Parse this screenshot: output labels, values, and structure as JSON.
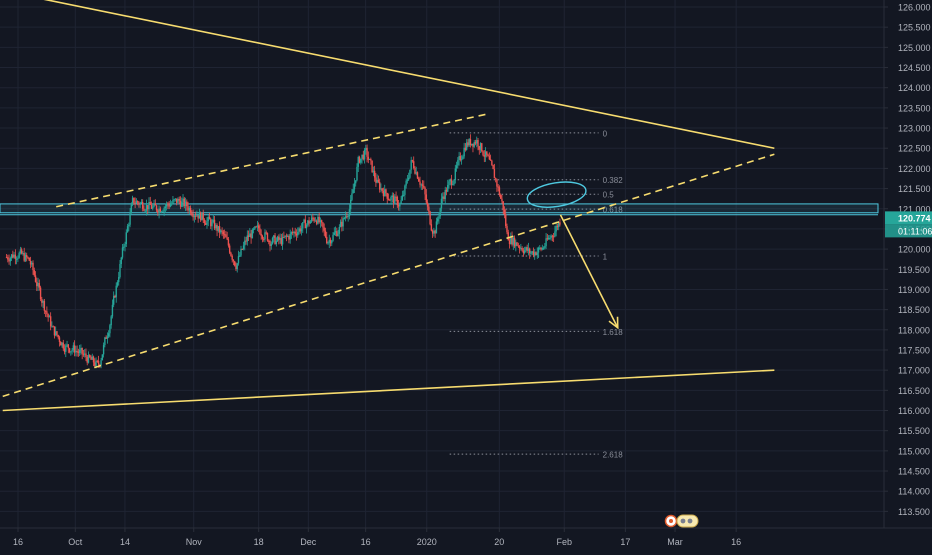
{
  "chart_data": {
    "type": "candlestick",
    "title": "",
    "xlabel": "",
    "ylabel": "",
    "ylim": [
      113.2,
      126.2
    ],
    "grid": true,
    "legend": "none",
    "colors": {
      "background": "#131722",
      "grid": "#1f2433",
      "up": "#26a69a",
      "down": "#ef5350",
      "trendline": "#f7dc6f",
      "zone": "#4ec9e0",
      "fib": "#8a8e99",
      "axis_text": "#b2b5be",
      "price_tag": "#26a69a",
      "countdown_tag": "#26a69a",
      "divider": "#2a2e39"
    },
    "y_ticks": [
      "113.500",
      "114.000",
      "114.500",
      "115.000",
      "115.500",
      "116.000",
      "116.500",
      "117.000",
      "117.500",
      "118.000",
      "118.500",
      "119.000",
      "119.500",
      "120.000",
      "120.500",
      "121.000",
      "121.500",
      "122.000",
      "122.500",
      "123.000",
      "123.500",
      "124.000",
      "124.500",
      "125.000",
      "125.500",
      "126.000"
    ],
    "y_tick_values": [
      113.5,
      114.0,
      114.5,
      115.0,
      115.5,
      116.0,
      116.5,
      117.0,
      117.5,
      118.0,
      118.5,
      119.0,
      119.5,
      120.0,
      120.5,
      121.0,
      121.5,
      122.0,
      122.5,
      123.0,
      123.5,
      124.0,
      124.5,
      125.0,
      125.5,
      126.0
    ],
    "x_ticks": [
      "16",
      "Oct",
      "14",
      "Nov",
      "18",
      "Dec",
      "16",
      "2020",
      "20",
      "Feb",
      "17",
      "Mar",
      "16"
    ],
    "x_tick_days": [
      0,
      15,
      28,
      46,
      63,
      76,
      91,
      107,
      126,
      143,
      159,
      172,
      188
    ],
    "series": {
      "name": "",
      "anchors": [
        [
          -3,
          119.8
        ],
        [
          0,
          119.9
        ],
        [
          3,
          119.7
        ],
        [
          6,
          118.8
        ],
        [
          9,
          118.0
        ],
        [
          12,
          117.6
        ],
        [
          15,
          117.5
        ],
        [
          18,
          117.3
        ],
        [
          21,
          117.1
        ],
        [
          24,
          118.2
        ],
        [
          27,
          119.8
        ],
        [
          30,
          121.2
        ],
        [
          33,
          121.1
        ],
        [
          36,
          121.0
        ],
        [
          39,
          121.1
        ],
        [
          42,
          121.2
        ],
        [
          45,
          121.0
        ],
        [
          48,
          120.8
        ],
        [
          51,
          120.6
        ],
        [
          54,
          120.3
        ],
        [
          57,
          119.6
        ],
        [
          60,
          120.3
        ],
        [
          63,
          120.5
        ],
        [
          66,
          120.2
        ],
        [
          69,
          120.2
        ],
        [
          72,
          120.4
        ],
        [
          75,
          120.6
        ],
        [
          78,
          120.8
        ],
        [
          81,
          120.2
        ],
        [
          84,
          120.5
        ],
        [
          87,
          121.1
        ],
        [
          89,
          122.2
        ],
        [
          91,
          122.4
        ],
        [
          94,
          121.6
        ],
        [
          97,
          121.3
        ],
        [
          100,
          121.1
        ],
        [
          101,
          121.4
        ],
        [
          103,
          122.2
        ],
        [
          106,
          121.5
        ],
        [
          108,
          120.6
        ],
        [
          109,
          120.4
        ],
        [
          111,
          121.3
        ],
        [
          114,
          121.8
        ],
        [
          117,
          122.6
        ],
        [
          120,
          122.7
        ],
        [
          123,
          122.2
        ],
        [
          125,
          121.7
        ],
        [
          127,
          121.0
        ],
        [
          128,
          120.3
        ],
        [
          131,
          120.1
        ],
        [
          134,
          119.9
        ],
        [
          137,
          120.0
        ],
        [
          140,
          120.4
        ],
        [
          142,
          120.75
        ]
      ],
      "last_price": 120.774
    },
    "zone": {
      "upper": 121.12,
      "lower": 120.9
    },
    "fibonacci": {
      "x_start": 113,
      "x_end": 152,
      "levels": [
        {
          "ratio": "0",
          "price": 122.88
        },
        {
          "ratio": "0.382",
          "price": 121.72
        },
        {
          "ratio": "0.5",
          "price": 121.36
        },
        {
          "ratio": "0.618",
          "price": 120.99
        },
        {
          "ratio": "1",
          "price": 119.83
        },
        {
          "ratio": "1.618",
          "price": 117.96
        },
        {
          "ratio": "2.618",
          "price": 114.92
        }
      ]
    },
    "trendlines": [
      {
        "kind": "solid",
        "points": [
          [
            -4,
            126.4
          ],
          [
            198,
            122.5
          ]
        ]
      },
      {
        "kind": "solid",
        "points": [
          [
            -4,
            116.0
          ],
          [
            198,
            117.0
          ]
        ]
      },
      {
        "kind": "dashed",
        "points": [
          [
            -4,
            116.35
          ],
          [
            198,
            122.35
          ]
        ]
      },
      {
        "kind": "dashed",
        "points": [
          [
            10,
            121.05
          ],
          [
            123,
            123.35
          ]
        ]
      }
    ],
    "projection_arrow": {
      "from": [
        142,
        120.85
      ],
      "to": [
        157,
        118.05
      ]
    },
    "ellipse": {
      "center": [
        141,
        121.35
      ],
      "rx": 5,
      "ry_price": 0.28
    },
    "price_label": "120.774",
    "countdown_label": "01:11:06"
  }
}
